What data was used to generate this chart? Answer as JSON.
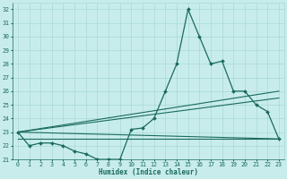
{
  "title": "",
  "xlabel": "Humidex (Indice chaleur)",
  "ylabel": "",
  "bg_color": "#c8ecec",
  "grid_color": "#a8d8d8",
  "line_color": "#1a6b5a",
  "xlim": [
    -0.5,
    23.5
  ],
  "ylim": [
    21,
    32.5
  ],
  "yticks": [
    21,
    22,
    23,
    24,
    25,
    26,
    27,
    28,
    29,
    30,
    31,
    32
  ],
  "xticks": [
    0,
    1,
    2,
    3,
    4,
    5,
    6,
    7,
    8,
    9,
    10,
    11,
    12,
    13,
    14,
    15,
    16,
    17,
    18,
    19,
    20,
    21,
    22,
    23
  ],
  "line1_x": [
    0,
    1,
    2,
    3,
    4,
    5,
    6,
    7,
    8,
    9,
    10,
    11,
    12,
    13,
    14,
    15,
    16,
    17,
    18,
    19,
    20,
    21,
    22,
    23
  ],
  "line1_y": [
    23.0,
    22.0,
    22.2,
    22.2,
    22.0,
    21.6,
    21.4,
    21.0,
    21.0,
    21.0,
    23.2,
    23.3,
    24.0,
    26.0,
    28.0,
    32.0,
    30.0,
    28.0,
    28.2,
    26.0,
    26.0,
    25.0,
    24.5,
    22.5
  ],
  "line2_x": [
    0,
    23
  ],
  "line2_y": [
    23.0,
    22.5
  ],
  "line3_x": [
    0,
    23
  ],
  "line3_y": [
    23.0,
    25.5
  ],
  "line4_x": [
    0,
    23
  ],
  "line4_y": [
    23.0,
    26.0
  ],
  "line5_x": [
    0,
    23
  ],
  "line5_y": [
    22.5,
    22.5
  ]
}
